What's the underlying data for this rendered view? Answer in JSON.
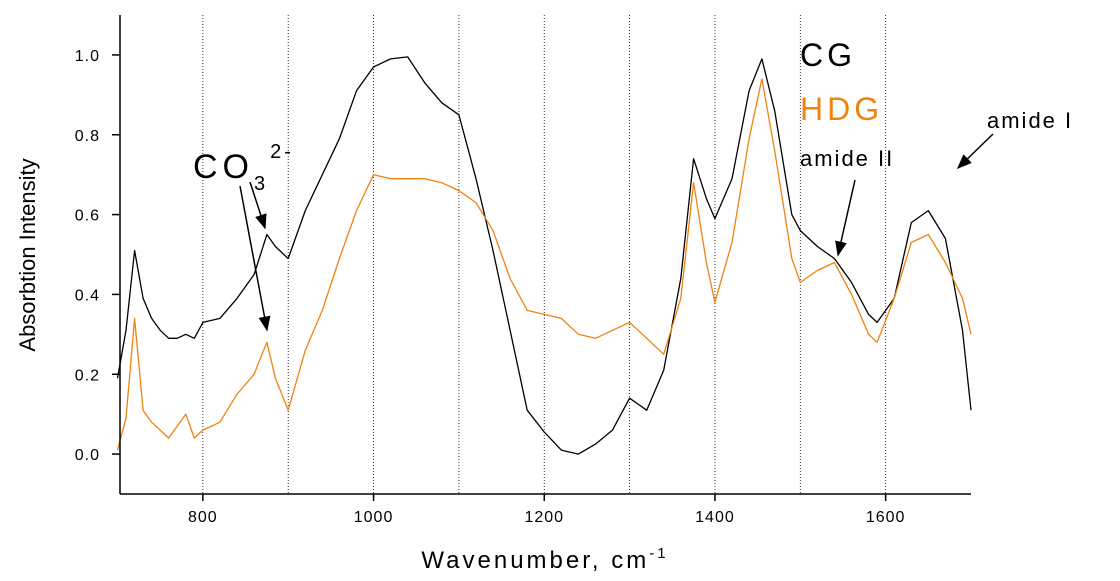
{
  "chart_data": {
    "type": "line",
    "x_label": "Wavenumber, cm",
    "x_label_sup": "-1",
    "y_label": "Absorbtion Intensity",
    "x": [
      700,
      710,
      720,
      730,
      740,
      750,
      760,
      770,
      780,
      790,
      800,
      820,
      840,
      860,
      875,
      885,
      900,
      920,
      940,
      960,
      980,
      1000,
      1020,
      1040,
      1060,
      1080,
      1100,
      1120,
      1140,
      1160,
      1180,
      1200,
      1220,
      1240,
      1260,
      1280,
      1300,
      1320,
      1340,
      1360,
      1375,
      1390,
      1400,
      1420,
      1440,
      1455,
      1470,
      1490,
      1500,
      1520,
      1540,
      1560,
      1580,
      1590,
      1610,
      1630,
      1650,
      1670,
      1690,
      1700
    ],
    "series": [
      {
        "name": "CG",
        "color": "#000000",
        "values": [
          0.19,
          0.31,
          0.51,
          0.39,
          0.34,
          0.31,
          0.29,
          0.29,
          0.3,
          0.29,
          0.33,
          0.34,
          0.39,
          0.45,
          0.55,
          0.52,
          0.49,
          0.61,
          0.7,
          0.79,
          0.91,
          0.97,
          0.99,
          0.995,
          0.93,
          0.88,
          0.85,
          0.69,
          0.51,
          0.31,
          0.11,
          0.055,
          0.01,
          0.0,
          0.025,
          0.06,
          0.14,
          0.11,
          0.21,
          0.44,
          0.74,
          0.64,
          0.59,
          0.69,
          0.91,
          0.99,
          0.86,
          0.6,
          0.56,
          0.52,
          0.49,
          0.43,
          0.35,
          0.33,
          0.39,
          0.58,
          0.61,
          0.54,
          0.31,
          0.11
        ]
      },
      {
        "name": "HDG",
        "color": "#f0820f",
        "values": [
          0.01,
          0.09,
          0.34,
          0.11,
          0.08,
          0.06,
          0.04,
          0.07,
          0.1,
          0.04,
          0.06,
          0.08,
          0.15,
          0.2,
          0.28,
          0.19,
          0.11,
          0.26,
          0.36,
          0.49,
          0.61,
          0.7,
          0.69,
          0.69,
          0.69,
          0.68,
          0.66,
          0.63,
          0.56,
          0.44,
          0.36,
          0.35,
          0.34,
          0.3,
          0.29,
          0.31,
          0.33,
          0.29,
          0.25,
          0.39,
          0.68,
          0.48,
          0.38,
          0.53,
          0.79,
          0.94,
          0.76,
          0.49,
          0.43,
          0.46,
          0.48,
          0.4,
          0.3,
          0.28,
          0.39,
          0.53,
          0.55,
          0.48,
          0.39,
          0.3
        ]
      }
    ],
    "annotations": [
      {
        "text": "CO",
        "sub": "3",
        "sup": "2-"
      },
      {
        "text": "amide II"
      },
      {
        "text": "amide I"
      }
    ],
    "xlim": [
      700,
      1700
    ],
    "xticks": [
      800,
      1000,
      1200,
      1400,
      1600
    ],
    "xgrid": [
      800,
      900,
      1000,
      1100,
      1200,
      1300,
      1400,
      1500,
      1600
    ],
    "ylim": [
      -0.1,
      1.1
    ],
    "yticks": [
      {
        "value": 0,
        "label": "0.0"
      },
      0.2,
      0.4,
      0.6,
      0.8,
      {
        "value": 1,
        "label": "1.0"
      }
    ]
  }
}
